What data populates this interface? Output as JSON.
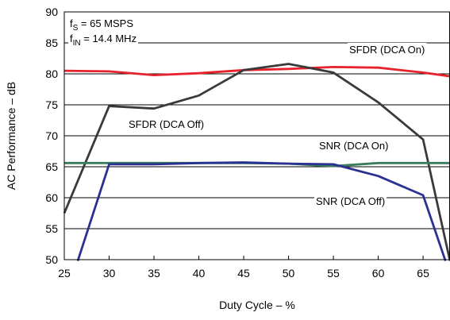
{
  "chart_data": {
    "type": "line",
    "xlabel": "Duty Cycle – %",
    "ylabel": "AC Performance – dB",
    "xlim": [
      25,
      68
    ],
    "ylim": [
      50,
      90
    ],
    "xticks": [
      25,
      30,
      35,
      40,
      45,
      50,
      55,
      60,
      65
    ],
    "yticks": [
      50,
      55,
      60,
      65,
      70,
      75,
      80,
      85,
      90
    ],
    "grid": "horizontal",
    "conditions": [
      {
        "prefix": "f",
        "sub": "S",
        "suffix": " = 65 MSPS"
      },
      {
        "prefix": "f",
        "sub": "IN",
        "suffix": " = 14.4 MHz"
      }
    ],
    "series": [
      {
        "name": "SFDR (DCA On)",
        "color": "#e8212b",
        "x": [
          25,
          30,
          35,
          40,
          45,
          50,
          55,
          60,
          65,
          68
        ],
        "y": [
          80.5,
          80.4,
          79.8,
          80.1,
          80.6,
          80.8,
          81.1,
          81.0,
          80.2,
          79.6
        ]
      },
      {
        "name": "SFDR (DCA Off)",
        "color": "#3a3a3a",
        "x": [
          25,
          30,
          35,
          40,
          45,
          50,
          55,
          60,
          65,
          68
        ],
        "y": [
          57.5,
          74.8,
          74.4,
          76.5,
          80.6,
          81.6,
          80.2,
          75.4,
          69.4,
          49.8
        ]
      },
      {
        "name": "SNR (DCA On)",
        "color": "#3a7d5a",
        "x": [
          25,
          30,
          35,
          40,
          45,
          50,
          55,
          60,
          65,
          68
        ],
        "y": [
          65.6,
          65.6,
          65.6,
          65.6,
          65.6,
          65.5,
          65.1,
          65.6,
          65.6,
          65.6
        ]
      },
      {
        "name": "SNR (DCA Off)",
        "color": "#2a3192",
        "x": [
          26.5,
          30,
          35,
          40,
          45,
          50,
          55,
          60,
          65,
          67.5
        ],
        "y": [
          49.8,
          65.4,
          65.4,
          65.6,
          65.7,
          65.5,
          65.4,
          63.5,
          60.4,
          49.8
        ]
      }
    ],
    "annotations": [
      {
        "text": "SFDR (DCA On)",
        "series": 0
      },
      {
        "text": "SFDR (DCA Off)",
        "series": 1
      },
      {
        "text": "SNR (DCA On)",
        "series": 2
      },
      {
        "text": "SNR (DCA Off)",
        "series": 3
      }
    ]
  }
}
